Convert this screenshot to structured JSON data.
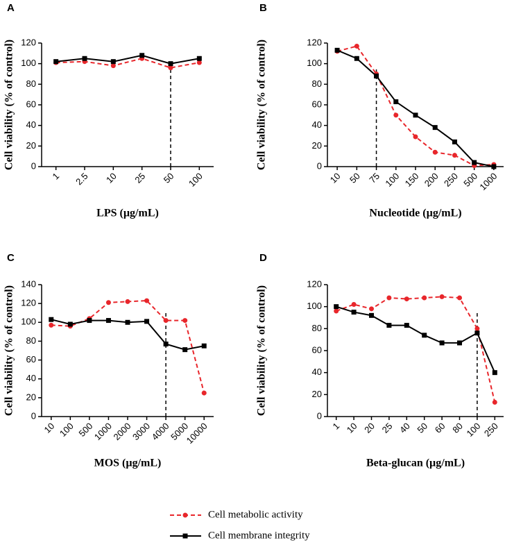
{
  "chart_data": [
    {
      "type": "line",
      "label": "A",
      "xlabel": "LPS (µg/mL)",
      "ylabel": "Cell viability (% of control)",
      "categories": [
        "1",
        "2.5",
        "10",
        "25",
        "50",
        "100"
      ],
      "ylim": [
        0,
        120
      ],
      "yticks": [
        0,
        20,
        40,
        60,
        80,
        100,
        120
      ],
      "vline": "50",
      "series": [
        {
          "name": "Cell metabolic activity",
          "color": "#e8262b",
          "marker": "circle",
          "dashed": true,
          "values": [
            101,
            102,
            98,
            105,
            96,
            101
          ]
        },
        {
          "name": "Cell membrane integrity",
          "color": "#000000",
          "marker": "square",
          "dashed": false,
          "values": [
            102,
            105,
            102,
            108,
            100,
            105
          ]
        }
      ]
    },
    {
      "type": "line",
      "label": "B",
      "xlabel": "Nucleotide (µg/mL)",
      "ylabel": "Cell viability (% of control)",
      "categories": [
        "10",
        "50",
        "75",
        "100",
        "150",
        "200",
        "250",
        "500",
        "1000"
      ],
      "ylim": [
        0,
        120
      ],
      "yticks": [
        0,
        20,
        40,
        60,
        80,
        100,
        120
      ],
      "vline": "75",
      "series": [
        {
          "name": "Cell metabolic activity",
          "color": "#e8262b",
          "marker": "circle",
          "dashed": true,
          "values": [
            112,
            117,
            90,
            50,
            29,
            14,
            11,
            1,
            2
          ]
        },
        {
          "name": "Cell membrane integrity",
          "color": "#000000",
          "marker": "square",
          "dashed": false,
          "values": [
            113,
            105,
            88,
            63,
            50,
            38,
            24,
            4,
            0
          ]
        }
      ]
    },
    {
      "type": "line",
      "label": "C",
      "xlabel": "MOS (µg/mL)",
      "ylabel": "Cell viability (% of control)",
      "categories": [
        "10",
        "100",
        "500",
        "1000",
        "2000",
        "3000",
        "4000",
        "5000",
        "10000"
      ],
      "ylim": [
        0,
        140
      ],
      "yticks": [
        0,
        20,
        40,
        60,
        80,
        100,
        120,
        140
      ],
      "vline": "4000",
      "series": [
        {
          "name": "Cell metabolic activity",
          "color": "#e8262b",
          "marker": "circle",
          "dashed": true,
          "values": [
            97,
            96,
            104,
            121,
            122,
            123,
            102,
            102,
            25
          ]
        },
        {
          "name": "Cell membrane integrity",
          "color": "#000000",
          "marker": "square",
          "dashed": false,
          "values": [
            103,
            98,
            102,
            102,
            100,
            101,
            77,
            71,
            75
          ]
        }
      ]
    },
    {
      "type": "line",
      "label": "D",
      "xlabel": "Beta-glucan (µg/mL)",
      "ylabel": "Cell viability (% of control)",
      "categories": [
        "1",
        "10",
        "20",
        "25",
        "40",
        "50",
        "60",
        "80",
        "100",
        "250"
      ],
      "ylim": [
        0,
        120
      ],
      "yticks": [
        0,
        20,
        40,
        60,
        80,
        100,
        120
      ],
      "vline": "100",
      "series": [
        {
          "name": "Cell metabolic activity",
          "color": "#e8262b",
          "marker": "circle",
          "dashed": true,
          "values": [
            96,
            102,
            98,
            108,
            107,
            108,
            109,
            108,
            80,
            13
          ]
        },
        {
          "name": "Cell membrane integrity",
          "color": "#000000",
          "marker": "square",
          "dashed": false,
          "values": [
            100,
            95,
            92,
            83,
            83,
            74,
            67,
            67,
            76,
            40
          ]
        }
      ]
    }
  ]
}
